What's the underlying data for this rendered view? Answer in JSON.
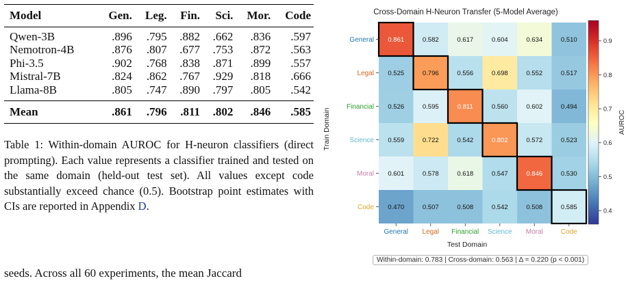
{
  "table": {
    "headers": [
      "Model",
      "Gen.",
      "Leg.",
      "Fin.",
      "Sci.",
      "Mor.",
      "Code"
    ],
    "rows": [
      [
        "Qwen-3B",
        ".896",
        ".795",
        ".882",
        ".662",
        ".836",
        ".597"
      ],
      [
        "Nemotron-4B",
        ".876",
        ".807",
        ".677",
        ".753",
        ".872",
        ".563"
      ],
      [
        "Phi-3.5",
        ".902",
        ".768",
        ".838",
        ".871",
        ".899",
        ".557"
      ],
      [
        "Mistral-7B",
        ".824",
        ".862",
        ".767",
        ".929",
        ".818",
        ".666"
      ],
      [
        "Llama-8B",
        ".805",
        ".747",
        ".890",
        ".797",
        ".805",
        ".542"
      ]
    ],
    "mean": [
      "Mean",
      ".861",
      ".796",
      ".811",
      ".802",
      ".846",
      ".585"
    ]
  },
  "caption": {
    "text": "Table 1: Within-domain AUROC for H-neuron classifiers (direct prompting). Each value represents a classifier trained and tested on the same domain (held-out test set). All values except code substantially exceed chance (0.5). Bootstrap point estimates with CIs are reported in",
    "appendix_word": "Appendix",
    "appendix_ref": "D",
    "end": "."
  },
  "body_text": "seeds. Across all 60 experiments, the mean Jaccard",
  "chart_data": {
    "type": "heatmap",
    "title": "Cross-Domain H-Neuron Transfer (5-Model Average)",
    "xlabel": "Test Domain",
    "ylabel": "Train Domain",
    "colorbar_label": "AUROC",
    "colorbar_ticks": [
      "0.9",
      "0.8",
      "0.7",
      "0.6",
      "0.5",
      "0.4"
    ],
    "colorbar_range": [
      0.36,
      0.96
    ],
    "colormap": "RdYlBu_r",
    "x_categories": [
      "General",
      "Legal",
      "Financial",
      "Science",
      "Moral",
      "Code"
    ],
    "y_categories": [
      "General",
      "Legal",
      "Financial",
      "Science",
      "Moral",
      "Code"
    ],
    "category_colors": [
      "#1f77b4",
      "#d9661f",
      "#2ca02c",
      "#5fb8d8",
      "#c77fa8",
      "#e0a72a"
    ],
    "values": [
      [
        0.861,
        0.582,
        0.617,
        0.604,
        0.634,
        0.51
      ],
      [
        0.525,
        0.796,
        0.556,
        0.698,
        0.552,
        0.517
      ],
      [
        0.526,
        0.595,
        0.811,
        0.56,
        0.602,
        0.494
      ],
      [
        0.559,
        0.722,
        0.542,
        0.802,
        0.572,
        0.523
      ],
      [
        0.601,
        0.578,
        0.618,
        0.547,
        0.846,
        0.53
      ],
      [
        0.47,
        0.507,
        0.508,
        0.542,
        0.508,
        0.585
      ]
    ],
    "footer": "Within-domain: 0.783  |  Cross-domain: 0.563  |  Δ = 0.220 (p < 0.001)"
  }
}
